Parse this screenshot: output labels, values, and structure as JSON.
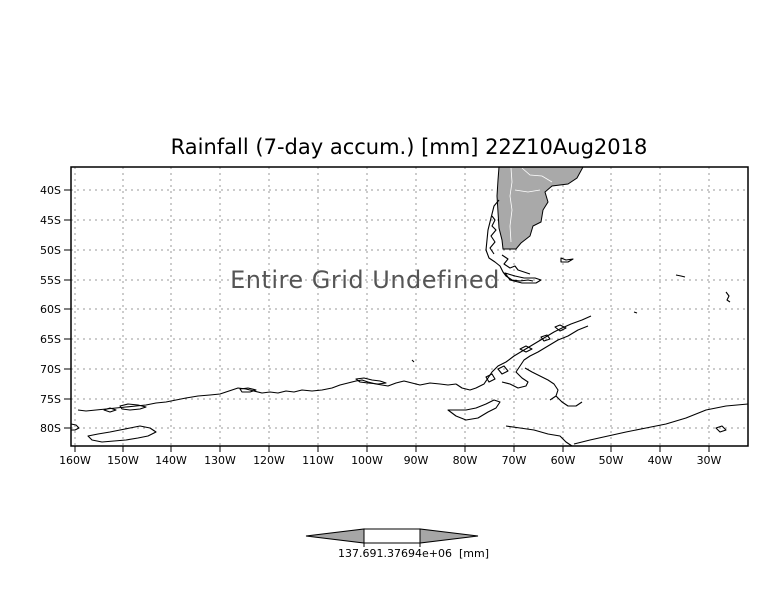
{
  "title": "Rainfall (7-day accum.) [mm] 22Z10Aug2018",
  "overlay_text": "Entire Grid Undefined",
  "lat_labels": [
    "40S",
    "45S",
    "50S",
    "55S",
    "60S",
    "65S",
    "70S",
    "75S",
    "80S"
  ],
  "lon_labels": [
    "160W",
    "150W",
    "140W",
    "130W",
    "120W",
    "110W",
    "100W",
    "90W",
    "80W",
    "70W",
    "60W",
    "50W",
    "40W",
    "30W"
  ],
  "colorbar": {
    "value_label": "137.691.37694e+06",
    "unit_label": "[mm]",
    "fill_colors": [
      "#a6a6a6",
      "#ffffff",
      "#a6a6a6"
    ]
  }
}
